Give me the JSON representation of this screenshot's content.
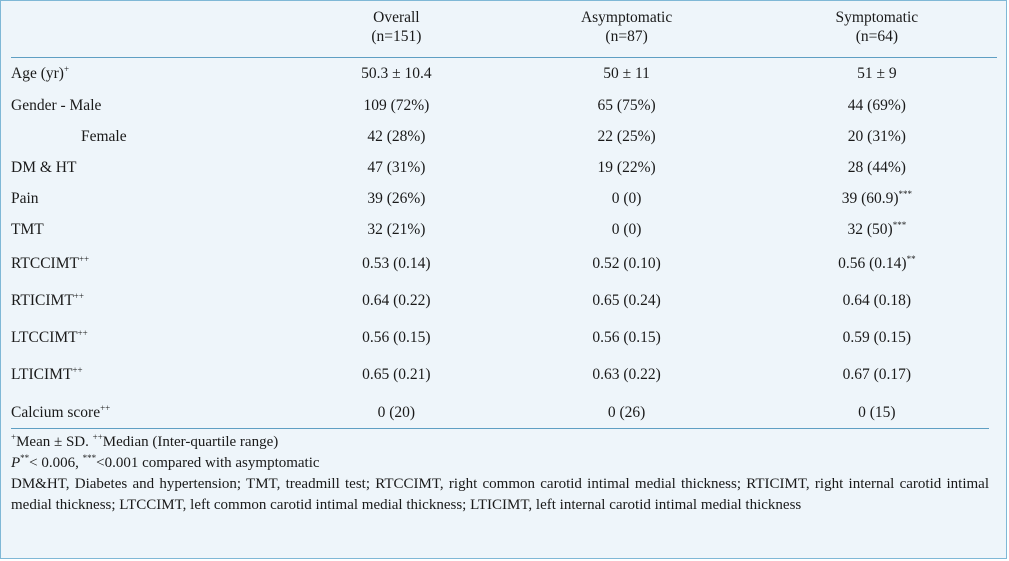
{
  "table": {
    "headers": [
      {
        "line1": "",
        "line2": ""
      },
      {
        "line1": "Overall",
        "line2": "(n=151)"
      },
      {
        "line1": "Asymptomatic",
        "line2": "(n=87)"
      },
      {
        "line1": "Symptomatic",
        "line2": "(n=64)"
      }
    ],
    "rows": [
      {
        "label": "Age (yr)",
        "label_sup": "+",
        "overall": "50.3 ± 10.4",
        "asym": "50 ± 11",
        "sym": "51 ± 9",
        "sym_sup": ""
      },
      {
        "label": "Gender - Male",
        "label_sup": "",
        "overall": "109 (72%)",
        "asym": "65 (75%)",
        "sym": "44 (69%)",
        "sym_sup": ""
      },
      {
        "label": "Female",
        "label_sup": "",
        "overall": "42 (28%)",
        "asym": "22 (25%)",
        "sym": "20 (31%)",
        "sym_sup": ""
      },
      {
        "label": "DM & HT",
        "label_sup": "",
        "overall": "47 (31%)",
        "asym": "19 (22%)",
        "sym": "28 (44%)",
        "sym_sup": ""
      },
      {
        "label": "Pain",
        "label_sup": "",
        "overall": "39 (26%)",
        "asym": "0 (0)",
        "sym": "39 (60.9)",
        "sym_sup": "***"
      },
      {
        "label": "TMT",
        "label_sup": "",
        "overall": "32 (21%)",
        "asym": "0 (0)",
        "sym": "32 (50)",
        "sym_sup": "***"
      },
      {
        "label": "RTCCIMT",
        "label_sup": "++",
        "overall": "0.53 (0.14)",
        "asym": "0.52 (0.10)",
        "sym": "0.56 (0.14)",
        "sym_sup": "**"
      },
      {
        "label": "RTICIMT",
        "label_sup": "++",
        "overall": "0.64 (0.22)",
        "asym": "0.65 (0.24)",
        "sym": "0.64 (0.18)",
        "sym_sup": ""
      },
      {
        "label": "LTCCIMT",
        "label_sup": "++",
        "overall": "0.56 (0.15)",
        "asym": "0.56 (0.15)",
        "sym": "0.59 (0.15)",
        "sym_sup": ""
      },
      {
        "label": "LTICIMT",
        "label_sup": "++",
        "overall": "0.65 (0.21)",
        "asym": "0.63 (0.22)",
        "sym": "0.67 (0.17)",
        "sym_sup": ""
      },
      {
        "label": "Calcium score",
        "label_sup": "++",
        "overall": "0 (20)",
        "asym": "0 (26)",
        "sym": "0 (15)",
        "sym_sup": ""
      }
    ]
  },
  "footnotes": {
    "line1_sup1": "+",
    "line1_a": "Mean ± SD. ",
    "line1_sup2": "++",
    "line1_b": "Median (Inter-quartile range)",
    "line2_p": "P",
    "line2_sup1": "**",
    "line2_a": "< 0.006, ",
    "line2_sup2": "***",
    "line2_b": "<0.001 compared with asymptomatic",
    "abbreviations": "DM&HT, Diabetes and hypertension; TMT, treadmill test; RTCCIMT, right common carotid intimal medial thickness; RTICIMT, right internal carotid intimal medial thickness; LTCCIMT, left common carotid intimal medial thickness; LTICIMT, left internal carotid intimal medial thickness"
  }
}
